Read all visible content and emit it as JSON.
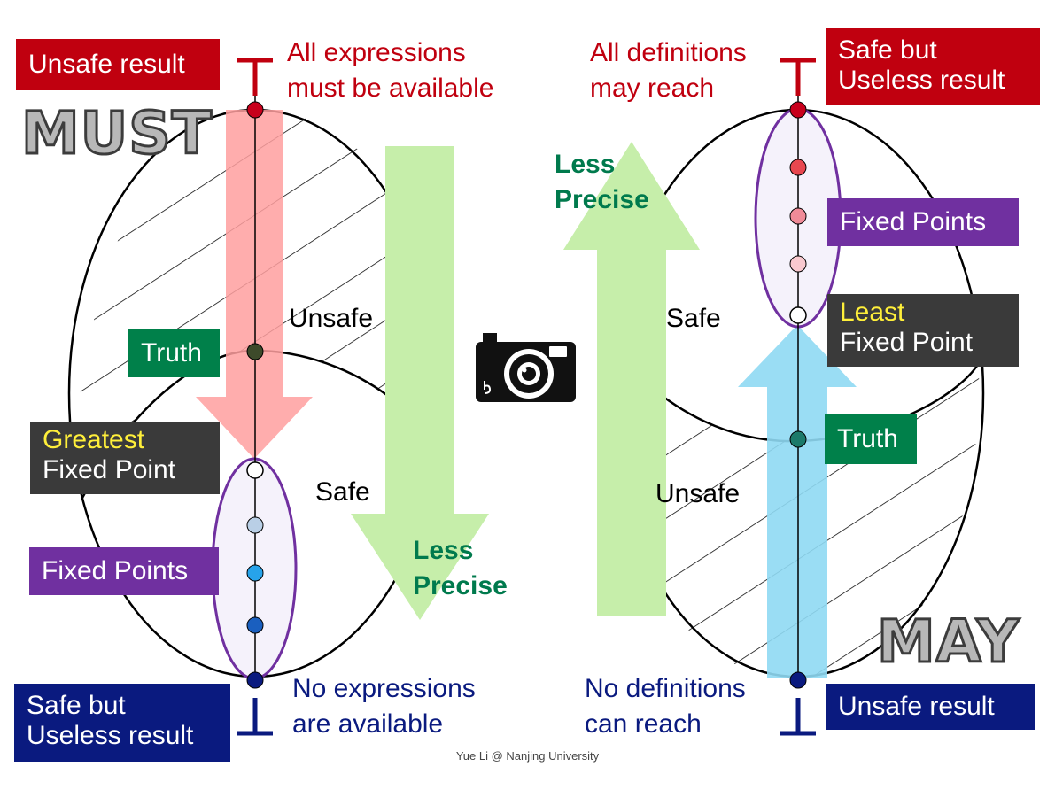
{
  "left": {
    "mode_word": "MUST",
    "top_box": "Unsafe result",
    "top_caption_line1": "All expressions",
    "top_caption_line2": "must be available",
    "bottom_box_line1": "Safe but",
    "bottom_box_line2": "Useless result",
    "bottom_caption_line1": "No expressions",
    "bottom_caption_line2": "are available",
    "region_upper": "Unsafe",
    "region_lower": "Safe",
    "truth": "Truth",
    "fp_highlight": "Greatest",
    "fp_rest": "Fixed Point",
    "fixed_points": "Fixed Points",
    "precision_line1": "Less",
    "precision_line2": "Precise",
    "top_symbol": "⊤",
    "bottom_symbol": "⊥"
  },
  "right": {
    "mode_word": "MAY",
    "top_box_line1": "Safe but",
    "top_box_line2": "Useless result",
    "top_caption_line1": "All definitions",
    "top_caption_line2": "may reach",
    "bottom_box": "Unsafe result",
    "bottom_caption_line1": "No definitions",
    "bottom_caption_line2": "can reach",
    "region_upper": "Safe",
    "region_lower": "Unsafe",
    "truth": "Truth",
    "fp_highlight": "Least",
    "fp_rest": "Fixed Point",
    "fixed_points": "Fixed Points",
    "precision_line1": "Less",
    "precision_line2": "Precise",
    "top_symbol": "⊤",
    "bottom_symbol": "⊥"
  },
  "footer": "Yue Li @ Nanjing University",
  "colors": {
    "red": "#c0000f",
    "navy": "#0a1a7f",
    "purple": "#7030a0",
    "green": "#00804a",
    "dark_gray": "#3a3a3a",
    "highlight_yellow": "#ffef3a",
    "pink_arrow": "#ff9f9f",
    "light_green_arrow": "#c6eeaa",
    "light_blue_arrow": "#8fd9f3"
  },
  "icons": {
    "center": "camera-icon"
  }
}
